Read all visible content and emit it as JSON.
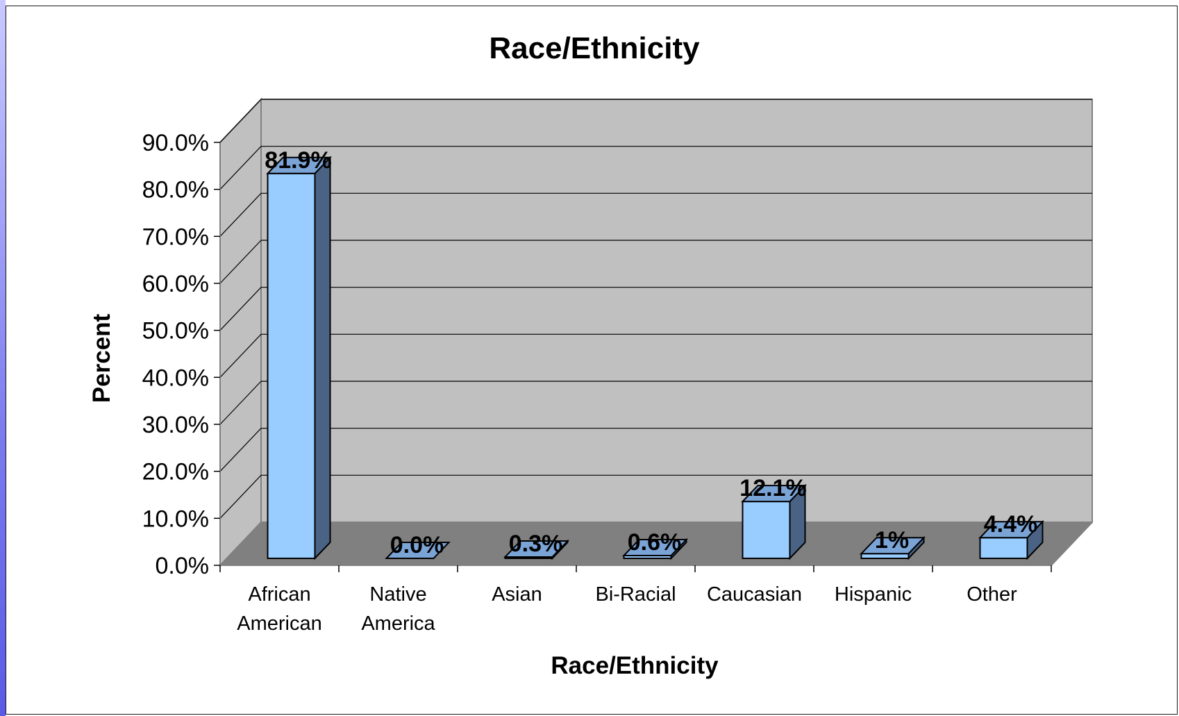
{
  "chart_data": {
    "type": "bar",
    "title": "Race/Ethnicity",
    "xlabel": "Race/Ethnicity",
    "ylabel": "Percent",
    "categories": [
      [
        "African",
        "American"
      ],
      [
        "Native",
        "America"
      ],
      [
        "Asian"
      ],
      [
        "Bi-Racial"
      ],
      [
        "Caucasian"
      ],
      [
        "Hispanic"
      ],
      [
        "Other"
      ]
    ],
    "values": [
      81.9,
      0.0,
      0.3,
      0.6,
      12.1,
      1,
      4.4
    ],
    "data_labels": [
      "81.9%",
      "0.0%",
      "0.3%",
      "0.6%",
      "12.1%",
      "1%",
      "4.4%"
    ],
    "y_ticks": [
      "0.0%",
      "10.0%",
      "20.0%",
      "30.0%",
      "40.0%",
      "50.0%",
      "60.0%",
      "70.0%",
      "80.0%",
      "90.0%"
    ],
    "ylim": [
      0,
      90
    ],
    "grid": true,
    "legend": "none",
    "colors": {
      "bar_front": "#99ccff",
      "bar_side": "#4a6385",
      "bar_top": "#7aa3d6",
      "back_wall": "#c0c0c0",
      "side_wall": "#c0c0c0",
      "floor": "#808080",
      "gridline": "#000000",
      "accent_strip": "#7c7cf0"
    }
  }
}
